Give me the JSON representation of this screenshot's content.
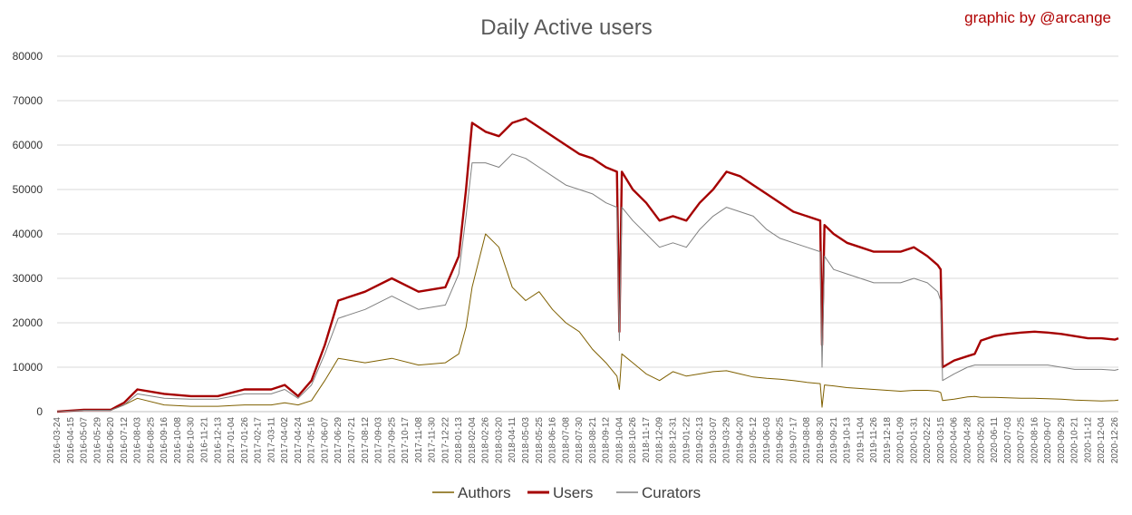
{
  "chart_data": {
    "type": "line",
    "title": "Daily Active users",
    "credit": "graphic by @arcange",
    "xlabel": "",
    "ylabel": "",
    "ylim": [
      0,
      80000
    ],
    "yticks": [
      "0",
      "10000",
      "20000",
      "30000",
      "40000",
      "50000",
      "60000",
      "70000",
      "80000"
    ],
    "grid": true,
    "legend_position": "bottom",
    "x_tick_labels": [
      "2016-03-24",
      "2016-04-15",
      "2016-05-07",
      "2016-05-29",
      "2016-06-20",
      "2016-07-12",
      "2016-08-03",
      "2016-08-25",
      "2016-09-16",
      "2016-10-08",
      "2016-10-30",
      "2016-11-21",
      "2016-12-13",
      "2017-01-04",
      "2017-01-26",
      "2017-02-17",
      "2017-03-11",
      "2017-04-02",
      "2017-04-24",
      "2017-05-16",
      "2017-06-07",
      "2017-06-29",
      "2017-07-21",
      "2017-08-12",
      "2017-09-03",
      "2017-09-25",
      "2017-10-17",
      "2017-11-08",
      "2017-11-30",
      "2017-12-22",
      "2018-01-13",
      "2018-02-04",
      "2018-02-26",
      "2018-03-20",
      "2018-04-11",
      "2018-05-03",
      "2018-05-25",
      "2018-06-16",
      "2018-07-08",
      "2018-07-30",
      "2018-08-21",
      "2018-09-12",
      "2018-10-04",
      "2018-10-26",
      "2018-11-17",
      "2018-12-09",
      "2018-12-31",
      "2019-01-22",
      "2019-02-13",
      "2019-03-07",
      "2019-03-29",
      "2019-04-20",
      "2019-05-12",
      "2019-06-03",
      "2019-06-25",
      "2019-07-17",
      "2019-08-08",
      "2019-08-30",
      "2019-09-21",
      "2019-10-13",
      "2019-11-04",
      "2019-11-26",
      "2019-12-18",
      "2020-01-09",
      "2020-01-31",
      "2020-02-22",
      "2020-03-15",
      "2020-04-06",
      "2020-04-28",
      "2020-05-20",
      "2020-06-11",
      "2020-07-03",
      "2020-07-25",
      "2020-08-16",
      "2020-09-07",
      "2020-09-29",
      "2020-10-21",
      "2020-11-12",
      "2020-12-04",
      "2020-12-26"
    ],
    "x": [
      "2016-03-24",
      "2016-05-07",
      "2016-06-20",
      "2016-07-12",
      "2016-08-03",
      "2016-09-16",
      "2016-10-30",
      "2016-12-13",
      "2017-01-26",
      "2017-03-11",
      "2017-04-02",
      "2017-04-24",
      "2017-05-16",
      "2017-06-07",
      "2017-06-29",
      "2017-08-12",
      "2017-09-25",
      "2017-11-08",
      "2017-12-22",
      "2018-01-13",
      "2018-01-25",
      "2018-02-04",
      "2018-02-26",
      "2018-03-20",
      "2018-04-11",
      "2018-05-03",
      "2018-05-25",
      "2018-06-16",
      "2018-07-08",
      "2018-07-30",
      "2018-08-21",
      "2018-09-12",
      "2018-09-30",
      "2018-10-04",
      "2018-10-08",
      "2018-10-26",
      "2018-11-17",
      "2018-12-09",
      "2018-12-31",
      "2019-01-22",
      "2019-02-13",
      "2019-03-07",
      "2019-03-29",
      "2019-04-20",
      "2019-05-12",
      "2019-06-03",
      "2019-06-25",
      "2019-07-17",
      "2019-08-08",
      "2019-08-30",
      "2019-09-02",
      "2019-09-06",
      "2019-09-21",
      "2019-10-13",
      "2019-11-04",
      "2019-11-26",
      "2019-12-18",
      "2020-01-09",
      "2020-01-31",
      "2020-02-22",
      "2020-03-10",
      "2020-03-15",
      "2020-03-18",
      "2020-04-06",
      "2020-04-28",
      "2020-05-10",
      "2020-05-20",
      "2020-06-11",
      "2020-07-03",
      "2020-07-25",
      "2020-08-16",
      "2020-09-07",
      "2020-09-29",
      "2020-10-21",
      "2020-11-12",
      "2020-12-04",
      "2020-12-26",
      "2021-01-01"
    ],
    "series": [
      {
        "name": "Authors",
        "color": "#7f6000",
        "width": 1,
        "values": [
          0,
          300,
          300,
          1500,
          3000,
          1500,
          1200,
          1200,
          1500,
          1500,
          2000,
          1500,
          2500,
          7000,
          12000,
          11000,
          12000,
          10500,
          11000,
          13000,
          19000,
          28000,
          40000,
          37000,
          28000,
          25000,
          27000,
          23000,
          20000,
          18000,
          14000,
          11000,
          8000,
          5000,
          13000,
          11000,
          8500,
          7000,
          9000,
          8000,
          8500,
          9000,
          9200,
          8500,
          7800,
          7500,
          7300,
          7000,
          6600,
          6300,
          1000,
          6000,
          5800,
          5400,
          5200,
          5000,
          4800,
          4600,
          4800,
          4800,
          4600,
          4300,
          2500,
          2800,
          3300,
          3400,
          3200,
          3200,
          3100,
          3000,
          3000,
          2900,
          2800,
          2600,
          2500,
          2400,
          2500,
          2600
        ]
      },
      {
        "name": "Users",
        "color": "#a50000",
        "width": 2.4,
        "values": [
          0,
          400,
          400,
          2000,
          5000,
          4000,
          3500,
          3500,
          5000,
          5000,
          6000,
          3500,
          7000,
          15000,
          25000,
          27000,
          30000,
          27000,
          28000,
          35000,
          50000,
          65000,
          63000,
          62000,
          65000,
          66000,
          64000,
          62000,
          60000,
          58000,
          57000,
          55000,
          54000,
          18000,
          54000,
          50000,
          47000,
          43000,
          44000,
          43000,
          47000,
          50000,
          54000,
          53000,
          51000,
          49000,
          47000,
          45000,
          44000,
          43000,
          15000,
          42000,
          40000,
          38000,
          37000,
          36000,
          36000,
          36000,
          37000,
          35000,
          33000,
          32000,
          10000,
          11500,
          12500,
          13000,
          16000,
          17000,
          17500,
          17800,
          18000,
          17800,
          17500,
          17000,
          16500,
          16500,
          16200,
          16500
        ]
      },
      {
        "name": "Curators",
        "color": "#808080",
        "width": 1,
        "values": [
          0,
          300,
          300,
          1500,
          4000,
          3000,
          2800,
          2800,
          4000,
          4000,
          5000,
          3000,
          6000,
          13000,
          21000,
          23000,
          26000,
          23000,
          24000,
          31000,
          44000,
          56000,
          56000,
          55000,
          58000,
          57000,
          55000,
          53000,
          51000,
          50000,
          49000,
          47000,
          46000,
          16000,
          46000,
          43000,
          40000,
          37000,
          38000,
          37000,
          41000,
          44000,
          46000,
          45000,
          44000,
          41000,
          39000,
          38000,
          37000,
          36000,
          10000,
          35000,
          32000,
          31000,
          30000,
          29000,
          29000,
          29000,
          30000,
          29000,
          27000,
          25000,
          7000,
          8500,
          10000,
          10500,
          10500,
          10500,
          10500,
          10500,
          10500,
          10500,
          10000,
          9500,
          9500,
          9500,
          9300,
          9500
        ]
      }
    ]
  }
}
